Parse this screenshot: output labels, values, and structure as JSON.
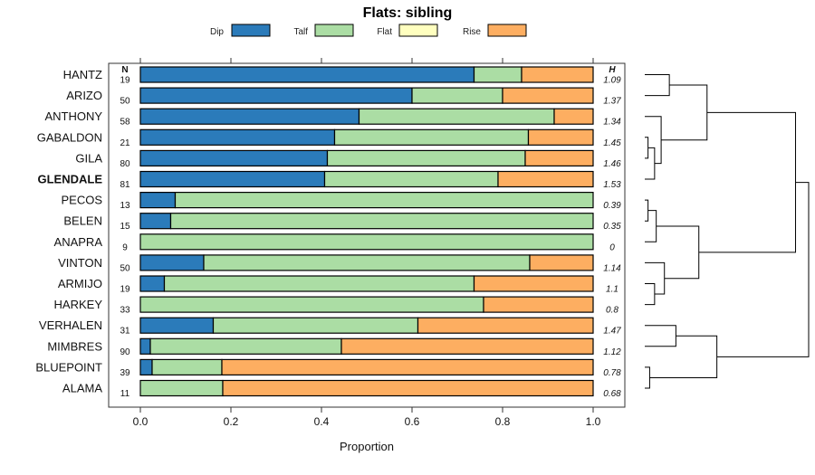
{
  "chart_data": {
    "type": "bar",
    "stacked": true,
    "orientation": "horizontal",
    "title": "Flats: sibling",
    "xlabel": "Proportion",
    "xlim": [
      0,
      1
    ],
    "xticks": [
      "0.0",
      "0.2",
      "0.4",
      "0.6",
      "0.8",
      "1.0"
    ],
    "n_header": "N",
    "h_header": "H",
    "legend": [
      {
        "name": "Dip",
        "color": "#2b7bba"
      },
      {
        "name": "Talf",
        "color": "#abdda4"
      },
      {
        "name": "Flat",
        "color": "#ffffbf"
      },
      {
        "name": "Rise",
        "color": "#fdae61"
      }
    ],
    "rows": [
      {
        "site": "HANTZ",
        "n": "19",
        "h": "1.09",
        "bold": false,
        "values": [
          0.737,
          0.105,
          0,
          0.158
        ]
      },
      {
        "site": "ARIZO",
        "n": "50",
        "h": "1.37",
        "bold": false,
        "values": [
          0.6,
          0.2,
          0,
          0.2
        ]
      },
      {
        "site": "ANTHONY",
        "n": "58",
        "h": "1.34",
        "bold": false,
        "values": [
          0.483,
          0.431,
          0,
          0.086
        ]
      },
      {
        "site": "GABALDON",
        "n": "21",
        "h": "1.45",
        "bold": false,
        "values": [
          0.429,
          0.428,
          0,
          0.143
        ]
      },
      {
        "site": "GILA",
        "n": "80",
        "h": "1.46",
        "bold": false,
        "values": [
          0.413,
          0.437,
          0,
          0.15
        ]
      },
      {
        "site": "GLENDALE",
        "n": "81",
        "h": "1.53",
        "bold": true,
        "values": [
          0.407,
          0.383,
          0,
          0.21
        ]
      },
      {
        "site": "PECOS",
        "n": "13",
        "h": "0.39",
        "bold": false,
        "values": [
          0.077,
          0.923,
          0,
          0
        ]
      },
      {
        "site": "BELEN",
        "n": "15",
        "h": "0.35",
        "bold": false,
        "values": [
          0.067,
          0.933,
          0,
          0
        ]
      },
      {
        "site": "ANAPRA",
        "n": "9",
        "h": "0",
        "bold": false,
        "values": [
          0,
          1.0,
          0,
          0
        ]
      },
      {
        "site": "VINTON",
        "n": "50",
        "h": "1.14",
        "bold": false,
        "values": [
          0.14,
          0.72,
          0,
          0.14
        ]
      },
      {
        "site": "ARMIJO",
        "n": "19",
        "h": "1.1",
        "bold": false,
        "values": [
          0.053,
          0.684,
          0,
          0.263
        ]
      },
      {
        "site": "HARKEY",
        "n": "33",
        "h": "0.8",
        "bold": false,
        "values": [
          0,
          0.758,
          0,
          0.242
        ]
      },
      {
        "site": "VERHALEN",
        "n": "31",
        "h": "1.47",
        "bold": false,
        "values": [
          0.161,
          0.452,
          0,
          0.387
        ]
      },
      {
        "site": "MIMBRES",
        "n": "90",
        "h": "1.12",
        "bold": false,
        "values": [
          0.022,
          0.422,
          0,
          0.556
        ]
      },
      {
        "site": "BLUEPOINT",
        "n": "39",
        "h": "0.78",
        "bold": false,
        "values": [
          0.026,
          0.154,
          0,
          0.82
        ]
      },
      {
        "site": "ALAMA",
        "n": "11",
        "h": "0.68",
        "bold": false,
        "values": [
          0,
          0.182,
          0,
          0.818
        ]
      }
    ],
    "dendrogram": {
      "merges": [
        {
          "a": "HANTZ",
          "b": "ARIZO",
          "height": 0.15
        },
        {
          "a": "GABALDON",
          "b": "GILA",
          "height": 0.02
        },
        {
          "a": "m2",
          "b": "GLENDALE",
          "height": 0.06
        },
        {
          "a": "ANTHONY",
          "b": "m3",
          "height": 0.1
        },
        {
          "a": "m1",
          "b": "m4",
          "height": 0.38
        },
        {
          "a": "PECOS",
          "b": "BELEN",
          "height": 0.02
        },
        {
          "a": "m6",
          "b": "ANAPRA",
          "height": 0.07
        },
        {
          "a": "ARMIJO",
          "b": "HARKEY",
          "height": 0.06
        },
        {
          "a": "VINTON",
          "b": "m8",
          "height": 0.12
        },
        {
          "a": "m7",
          "b": "m9",
          "height": 0.33
        },
        {
          "a": "m5",
          "b": "m10",
          "height": 0.92
        },
        {
          "a": "VERHALEN",
          "b": "MIMBRES",
          "height": 0.19
        },
        {
          "a": "BLUEPOINT",
          "b": "ALAMA",
          "height": 0.03
        },
        {
          "a": "m12",
          "b": "m13",
          "height": 0.44
        },
        {
          "a": "m11",
          "b": "m14",
          "height": 1.0
        }
      ]
    }
  }
}
